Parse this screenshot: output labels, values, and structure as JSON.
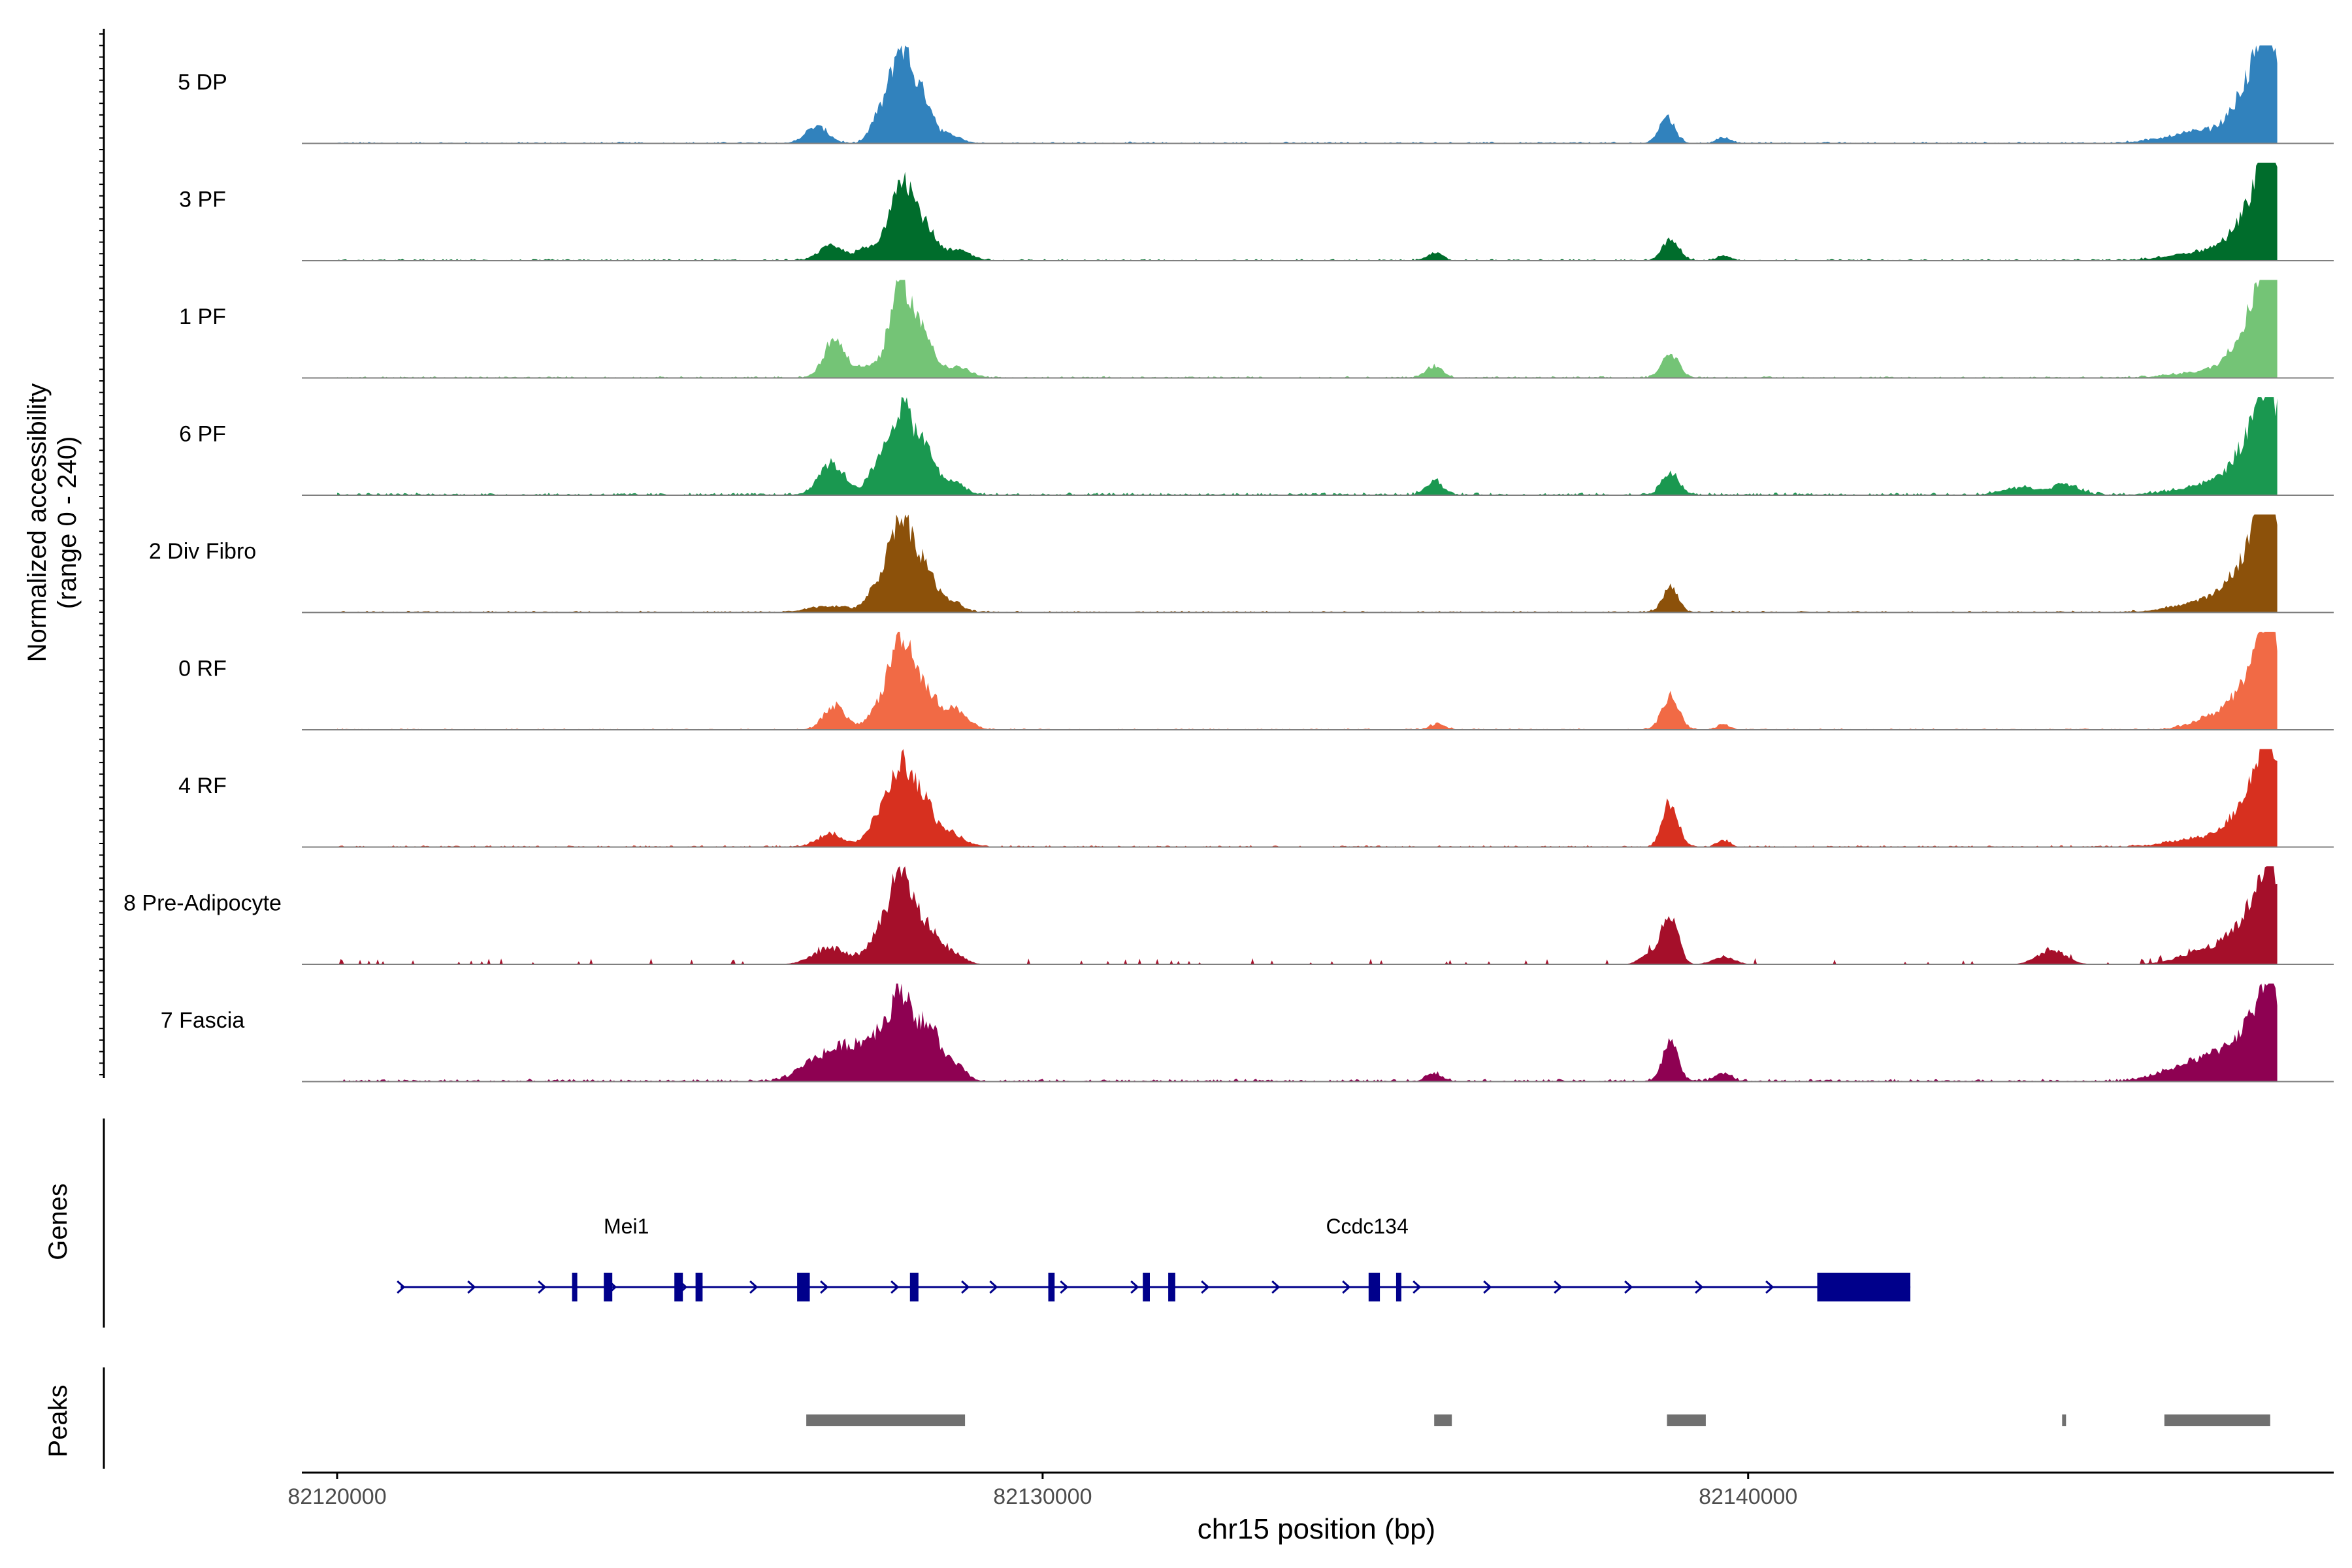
{
  "chart_data": {
    "type": "area",
    "title": "",
    "xlabel": "chr15 position (bp)",
    "xlim": [
      82119500,
      82148300
    ],
    "x_ticks": [
      82120000,
      82130000,
      82140000
    ],
    "x_tick_labels": [
      "82120000",
      "82130000",
      "82140000"
    ],
    "ylabel": "Normalized accessibility",
    "ylabel_range": "(range 0 - 240)",
    "ylim": [
      0,
      240
    ],
    "track_end": 82147500,
    "series": [
      {
        "name": "5 DP",
        "color": "#3182bd",
        "peaks": [
          [
            82126800,
            40,
            160
          ],
          [
            82127650,
            45,
            110
          ],
          [
            82128000,
            240,
            170
          ],
          [
            82128350,
            85,
            120
          ],
          [
            82128700,
            20,
            150
          ],
          [
            82138850,
            65,
            110
          ],
          [
            82139650,
            15,
            90
          ],
          [
            82146500,
            30,
            500
          ],
          [
            82147150,
            130,
            240
          ],
          [
            82147400,
            210,
            160
          ]
        ],
        "noise": 4
      },
      {
        "name": "3 PF",
        "color": "#006d2c",
        "peaks": [
          [
            82127000,
            35,
            170
          ],
          [
            82127500,
            28,
            150
          ],
          [
            82128000,
            210,
            170
          ],
          [
            82128350,
            70,
            140
          ],
          [
            82128800,
            25,
            180
          ],
          [
            82135550,
            18,
            110
          ],
          [
            82138900,
            50,
            120
          ],
          [
            82139650,
            12,
            90
          ],
          [
            82146600,
            25,
            500
          ],
          [
            82147150,
            105,
            250
          ],
          [
            82147400,
            230,
            160
          ]
        ],
        "noise": 4
      },
      {
        "name": "1 PF",
        "color": "#74c476",
        "peaks": [
          [
            82127050,
            95,
            150
          ],
          [
            82127500,
            25,
            150
          ],
          [
            82128000,
            230,
            170
          ],
          [
            82128350,
            80,
            140
          ],
          [
            82128800,
            25,
            180
          ],
          [
            82135550,
            28,
            120
          ],
          [
            82138900,
            60,
            120
          ],
          [
            82146650,
            18,
            500
          ],
          [
            82147150,
            120,
            250
          ],
          [
            82147400,
            240,
            160
          ]
        ],
        "noise": 4
      },
      {
        "name": "6 PF",
        "color": "#1a9850",
        "peaks": [
          [
            82126950,
            50,
            160
          ],
          [
            82127100,
            35,
            180
          ],
          [
            82127650,
            55,
            140
          ],
          [
            82128000,
            210,
            170
          ],
          [
            82128350,
            95,
            150
          ],
          [
            82128750,
            30,
            150
          ],
          [
            82135550,
            35,
            120
          ],
          [
            82138900,
            55,
            120
          ],
          [
            82143850,
            18,
            250
          ],
          [
            82144500,
            25,
            200
          ],
          [
            82146700,
            30,
            500
          ],
          [
            82147150,
            105,
            250
          ],
          [
            82147400,
            200,
            160
          ]
        ],
        "noise": 6
      },
      {
        "name": "2 Div Fibro",
        "color": "#8c510a",
        "peaks": [
          [
            82127000,
            15,
            300
          ],
          [
            82127650,
            50,
            140
          ],
          [
            82128000,
            240,
            170
          ],
          [
            82128350,
            90,
            140
          ],
          [
            82128700,
            25,
            160
          ],
          [
            82138900,
            60,
            110
          ],
          [
            82146700,
            35,
            500
          ],
          [
            82147150,
            120,
            250
          ],
          [
            82147400,
            240,
            160
          ]
        ],
        "noise": 4
      },
      {
        "name": "0 RF",
        "color": "#f16a45",
        "peaks": [
          [
            82127050,
            60,
            150
          ],
          [
            82127650,
            40,
            150
          ],
          [
            82128000,
            230,
            170
          ],
          [
            82128350,
            80,
            150
          ],
          [
            82128750,
            50,
            180
          ],
          [
            82135600,
            15,
            100
          ],
          [
            82138900,
            80,
            120
          ],
          [
            82139650,
            12,
            90
          ],
          [
            82146600,
            30,
            300
          ],
          [
            82147150,
            120,
            250
          ],
          [
            82147400,
            220,
            160
          ]
        ],
        "noise": 3
      },
      {
        "name": "4 RF",
        "color": "#d7301f",
        "peaks": [
          [
            82127000,
            30,
            200
          ],
          [
            82127650,
            55,
            150
          ],
          [
            82128000,
            200,
            170
          ],
          [
            82128350,
            95,
            150
          ],
          [
            82128750,
            30,
            150
          ],
          [
            82138900,
            110,
            110
          ],
          [
            82139650,
            15,
            90
          ],
          [
            82146600,
            25,
            500
          ],
          [
            82147150,
            110,
            250
          ],
          [
            82147400,
            210,
            160
          ]
        ],
        "noise": 4
      },
      {
        "name": "8 Pre-Adipocyte",
        "color": "#a50f2a",
        "peaks": [
          [
            82127000,
            40,
            250
          ],
          [
            82127650,
            55,
            150
          ],
          [
            82128000,
            240,
            170
          ],
          [
            82128400,
            80,
            150
          ],
          [
            82128750,
            25,
            150
          ],
          [
            82138900,
            120,
            110
          ],
          [
            82138650,
            30,
            150
          ],
          [
            82139650,
            20,
            150
          ],
          [
            82144300,
            35,
            200
          ],
          [
            82146600,
            40,
            400
          ],
          [
            82147150,
            100,
            250
          ],
          [
            82147400,
            190,
            160
          ]
        ],
        "noise": 10,
        "sparse": true
      },
      {
        "name": "7 Fascia",
        "color": "#8e0152",
        "peaks": [
          [
            82126800,
            50,
            250
          ],
          [
            82127300,
            80,
            250
          ],
          [
            82127650,
            70,
            150
          ],
          [
            82128000,
            220,
            170
          ],
          [
            82128400,
            120,
            150
          ],
          [
            82128750,
            40,
            150
          ],
          [
            82135550,
            20,
            110
          ],
          [
            82138900,
            95,
            110
          ],
          [
            82139650,
            20,
            120
          ],
          [
            82146300,
            40,
            400
          ],
          [
            82146800,
            40,
            300
          ],
          [
            82147150,
            95,
            250
          ],
          [
            82147400,
            190,
            160
          ]
        ],
        "noise": 6
      }
    ],
    "genes_label": "Genes",
    "genes": [
      {
        "name": "Mei1",
        "label_at": 82124100,
        "start": 82120900,
        "end": 82129300,
        "strand": "+",
        "exons": [
          [
            82123330,
            82123400
          ],
          [
            82123780,
            82123900
          ],
          [
            82124780,
            82124900
          ],
          [
            82125080,
            82125180
          ],
          [
            82126520,
            82126700
          ],
          [
            82128120,
            82128240
          ]
        ]
      },
      {
        "name": "Ccdc134",
        "label_at": 82134600,
        "start": 82129300,
        "end": 82142300,
        "strand": "+",
        "exons": [
          [
            82130080,
            82130170
          ],
          [
            82131420,
            82131520
          ],
          [
            82131780,
            82131880
          ],
          [
            82134620,
            82134780
          ],
          [
            82135010,
            82135080
          ],
          [
            82140980,
            82142300
          ]
        ]
      }
    ],
    "peaks_label": "Peaks",
    "peak_regions": [
      [
        82126650,
        82128900
      ],
      [
        82135550,
        82135800
      ],
      [
        82138850,
        82139400
      ],
      [
        82144450,
        82144500
      ],
      [
        82145900,
        82147400
      ]
    ]
  }
}
